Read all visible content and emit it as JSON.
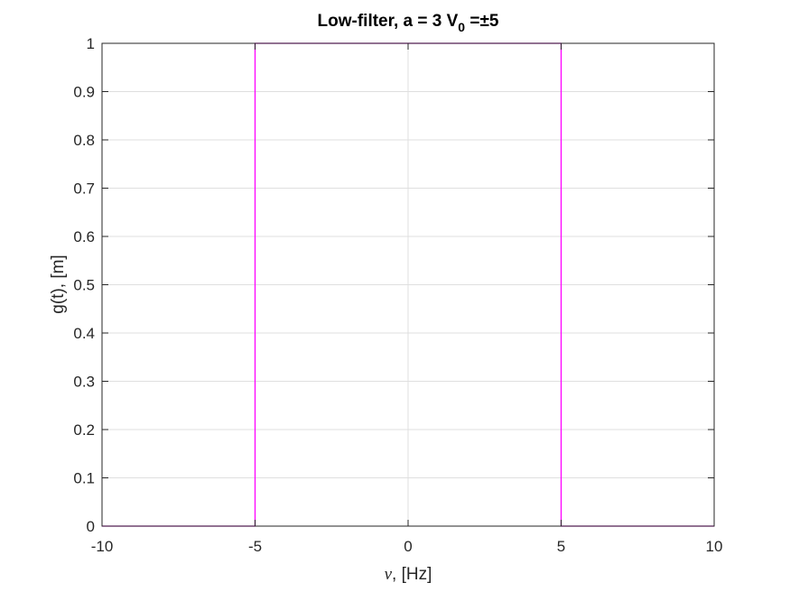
{
  "chart_data": {
    "type": "line",
    "title": {
      "main": "Low-filter, a = 3 V",
      "subscript": "0",
      "suffix": " =±5"
    },
    "xlabel": {
      "symbol": "ν",
      "text": ", [Hz]"
    },
    "ylabel": "g(t), [m]",
    "xlim": [
      -10,
      10
    ],
    "ylim": [
      0,
      1
    ],
    "xticks": [
      -10,
      -5,
      0,
      5,
      10
    ],
    "xtick_labels": [
      "-10",
      "-5",
      "0",
      "5",
      "10"
    ],
    "yticks": [
      0,
      0.1,
      0.2,
      0.3,
      0.4,
      0.5,
      0.6,
      0.7,
      0.8,
      0.9,
      1
    ],
    "ytick_labels": [
      "0",
      "0.1",
      "0.2",
      "0.3",
      "0.4",
      "0.5",
      "0.6",
      "0.7",
      "0.8",
      "0.9",
      "1"
    ],
    "grid": true,
    "box": true,
    "series": [
      {
        "color": "#ff00ff",
        "x": [
          -10,
          -5,
          -5,
          5,
          5,
          10
        ],
        "y": [
          0,
          0,
          1,
          1,
          0,
          0
        ]
      }
    ],
    "colors": {
      "axis": "#262626",
      "grid": "#dfdfdf",
      "background": "#ffffff"
    }
  }
}
